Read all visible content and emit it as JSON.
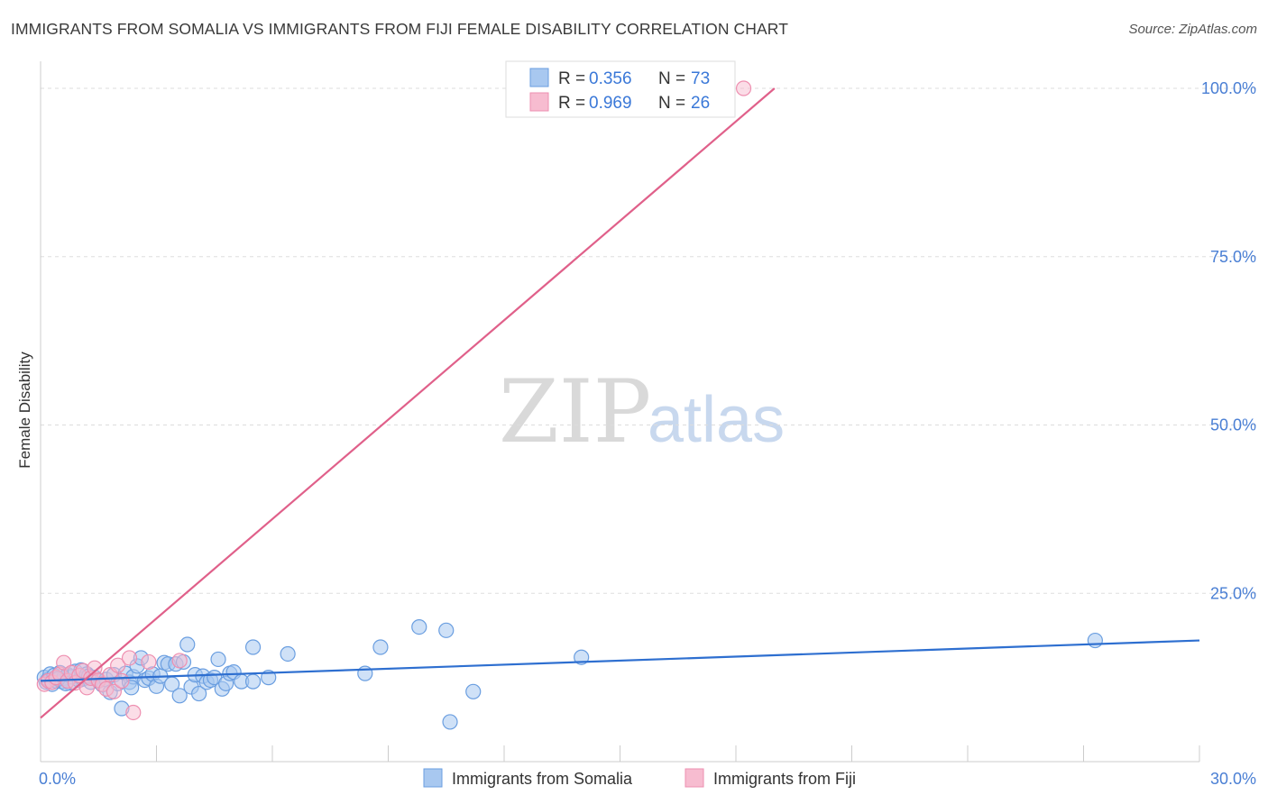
{
  "header": {
    "title": "IMMIGRANTS FROM SOMALIA VS IMMIGRANTS FROM FIJI FEMALE DISABILITY CORRELATION CHART",
    "source": "Source: ZipAtlas.com"
  },
  "watermark": {
    "zip": "ZIP",
    "atlas": "atlas"
  },
  "colors": {
    "somalia_fill": "#a8c8f0",
    "somalia_stroke": "#6a9ee0",
    "somalia_line": "#2e6fd0",
    "fiji_fill": "#f7bcd0",
    "fiji_stroke": "#ee8fb0",
    "fiji_line": "#e0608a",
    "grid": "#dddddd",
    "tick_text": "#4a7fd4"
  },
  "legend": {
    "rows": [
      {
        "r_label": "R =",
        "r_value": "0.356",
        "n_label": "N =",
        "n_value": "73"
      },
      {
        "r_label": "R =",
        "r_value": "0.969",
        "n_label": "N =",
        "n_value": "26"
      }
    ]
  },
  "chart_data": {
    "type": "scatter",
    "title": "IMMIGRANTS FROM SOMALIA VS IMMIGRANTS FROM FIJI FEMALE DISABILITY CORRELATION CHART",
    "xlabel": "",
    "ylabel": "Female Disability",
    "xlim": [
      0,
      30
    ],
    "ylim": [
      0,
      100
    ],
    "x_tick_labels": [
      "0.0%",
      "30.0%"
    ],
    "y_ticks": [
      25,
      50,
      75,
      100
    ],
    "y_tick_labels": [
      "25.0%",
      "50.0%",
      "75.0%",
      "100.0%"
    ],
    "grid": true,
    "series": [
      {
        "name": "Immigrants from Somalia",
        "r": 0.356,
        "n": 73,
        "trend": {
          "x": [
            0,
            30
          ],
          "y": [
            12.0,
            18.0
          ]
        },
        "points": [
          [
            0.1,
            12.5
          ],
          [
            0.15,
            11.8
          ],
          [
            0.2,
            12.2
          ],
          [
            0.25,
            13.0
          ],
          [
            0.3,
            11.5
          ],
          [
            0.35,
            12.8
          ],
          [
            0.4,
            12.0
          ],
          [
            0.5,
            13.2
          ],
          [
            0.55,
            11.9
          ],
          [
            0.6,
            12.4
          ],
          [
            0.7,
            12.9
          ],
          [
            0.75,
            11.7
          ],
          [
            0.8,
            12.6
          ],
          [
            0.9,
            13.4
          ],
          [
            1.0,
            12.1
          ],
          [
            1.05,
            13.6
          ],
          [
            1.1,
            12.3
          ],
          [
            1.2,
            13.0
          ],
          [
            1.3,
            11.8
          ],
          [
            1.4,
            12.5
          ],
          [
            1.5,
            12.0
          ],
          [
            1.6,
            11.4
          ],
          [
            1.7,
            12.2
          ],
          [
            1.8,
            10.3
          ],
          [
            1.9,
            12.9
          ],
          [
            2.0,
            11.6
          ],
          [
            2.1,
            7.9
          ],
          [
            2.2,
            13.1
          ],
          [
            2.3,
            11.8
          ],
          [
            2.4,
            12.6
          ],
          [
            2.5,
            14.2
          ],
          [
            2.6,
            15.4
          ],
          [
            2.7,
            12.1
          ],
          [
            2.8,
            12.4
          ],
          [
            2.9,
            13.0
          ],
          [
            3.0,
            11.2
          ],
          [
            3.1,
            12.7
          ],
          [
            3.2,
            14.7
          ],
          [
            3.3,
            14.5
          ],
          [
            3.4,
            11.5
          ],
          [
            3.5,
            14.5
          ],
          [
            3.6,
            9.8
          ],
          [
            3.7,
            14.8
          ],
          [
            3.8,
            17.4
          ],
          [
            3.9,
            11.1
          ],
          [
            4.0,
            12.9
          ],
          [
            4.1,
            10.1
          ],
          [
            4.2,
            12.7
          ],
          [
            4.3,
            11.8
          ],
          [
            4.4,
            12.1
          ],
          [
            4.5,
            12.5
          ],
          [
            4.6,
            15.2
          ],
          [
            4.7,
            10.8
          ],
          [
            4.8,
            11.6
          ],
          [
            4.9,
            13.1
          ],
          [
            5.0,
            13.3
          ],
          [
            5.2,
            11.9
          ],
          [
            5.5,
            11.9
          ],
          [
            5.5,
            17.0
          ],
          [
            5.9,
            12.5
          ],
          [
            6.4,
            16.0
          ],
          [
            8.4,
            13.1
          ],
          [
            8.8,
            17.0
          ],
          [
            9.8,
            20.0
          ],
          [
            10.5,
            19.5
          ],
          [
            10.6,
            5.9
          ],
          [
            11.2,
            10.4
          ],
          [
            14.0,
            15.5
          ],
          [
            27.3,
            18.0
          ],
          [
            0.45,
            12.3
          ],
          [
            0.65,
            11.6
          ],
          [
            1.25,
            12.7
          ],
          [
            2.35,
            11.0
          ]
        ]
      },
      {
        "name": "Immigrants from Fiji",
        "r": 0.969,
        "n": 26,
        "trend": {
          "x": [
            0,
            19.0
          ],
          "y": [
            6.5,
            100.0
          ]
        },
        "points": [
          [
            0.1,
            11.5
          ],
          [
            0.2,
            12.0
          ],
          [
            0.3,
            11.8
          ],
          [
            0.4,
            12.5
          ],
          [
            0.5,
            13.0
          ],
          [
            0.6,
            14.7
          ],
          [
            0.7,
            12.0
          ],
          [
            0.8,
            13.2
          ],
          [
            0.9,
            11.7
          ],
          [
            1.0,
            12.8
          ],
          [
            1.1,
            13.5
          ],
          [
            1.2,
            11.0
          ],
          [
            1.3,
            12.4
          ],
          [
            1.4,
            13.9
          ],
          [
            1.5,
            12.1
          ],
          [
            1.6,
            11.5
          ],
          [
            1.7,
            10.8
          ],
          [
            1.8,
            12.9
          ],
          [
            1.9,
            10.4
          ],
          [
            2.0,
            14.3
          ],
          [
            2.1,
            12.0
          ],
          [
            2.3,
            15.4
          ],
          [
            2.4,
            7.3
          ],
          [
            2.8,
            14.8
          ],
          [
            3.6,
            15.0
          ],
          [
            18.2,
            100.0
          ]
        ]
      }
    ]
  },
  "bottom_legend": {
    "items": [
      {
        "label": "Immigrants from Somalia"
      },
      {
        "label": "Immigrants from Fiji"
      }
    ]
  }
}
